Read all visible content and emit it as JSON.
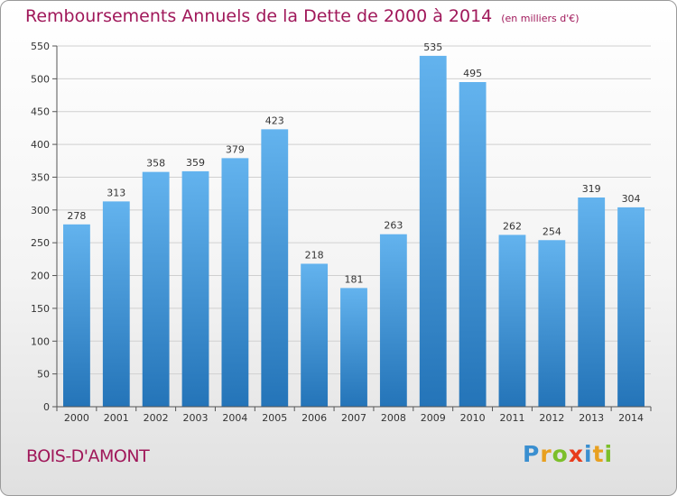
{
  "header": {
    "title": "Remboursements Annuels de la Dette de 2000 à 2014",
    "subtitle": "(en milliers d'€)"
  },
  "footer": {
    "commune": "BOIS-D'AMONT",
    "logo": "Proxiti"
  },
  "colors": {
    "title": "#a0185a",
    "bar_top": "#63b3ee",
    "bar_bottom": "#2474b8",
    "grid": "#d0d0d0"
  },
  "chart_data": {
    "type": "bar",
    "title": "Remboursements Annuels de la Dette de 2000 à 2014",
    "subtitle": "(en milliers d'€)",
    "categories": [
      "2000",
      "2001",
      "2002",
      "2003",
      "2004",
      "2005",
      "2006",
      "2007",
      "2008",
      "2009",
      "2010",
      "2011",
      "2012",
      "2013",
      "2014"
    ],
    "values": [
      278,
      313,
      358,
      359,
      379,
      423,
      218,
      181,
      263,
      535,
      495,
      262,
      254,
      319,
      304
    ],
    "ylim": [
      0,
      550
    ],
    "yticks": [
      0,
      50,
      100,
      150,
      200,
      250,
      300,
      350,
      400,
      450,
      500,
      550
    ],
    "grid": true,
    "xlabel": "",
    "ylabel": ""
  }
}
